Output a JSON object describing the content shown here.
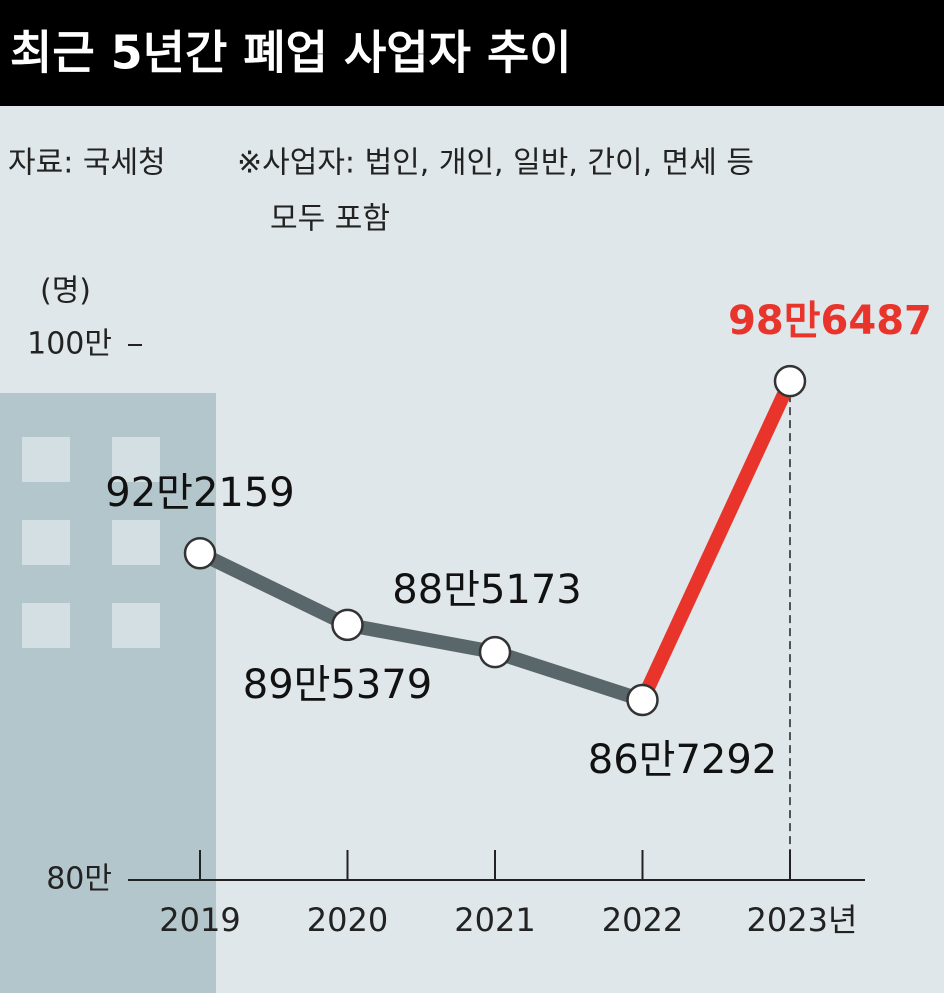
{
  "chart_data": {
    "type": "line",
    "title": "최근 5년간 폐업 사업자 추이",
    "source": "자료: 국세청",
    "note": [
      "※사업자: 법인, 개인, 일반, 간이, 면세 등",
      "모두 포함"
    ],
    "y_label": "(명)",
    "categories": [
      "2019",
      "2020",
      "2021",
      "2022",
      "2023년"
    ],
    "values": [
      922159,
      895379,
      885173,
      867292,
      986487
    ],
    "value_labels": [
      "92만2159",
      "89만5379",
      "88만5173",
      "86만7292",
      "98만6487"
    ],
    "color": "#59666a",
    "highlight_color": "#e8342a",
    "ylim": [
      800000,
      1000000
    ],
    "yticks": [
      {
        "value": 800000,
        "label": "80만"
      },
      {
        "value": 1000000,
        "label": "100만"
      }
    ]
  }
}
